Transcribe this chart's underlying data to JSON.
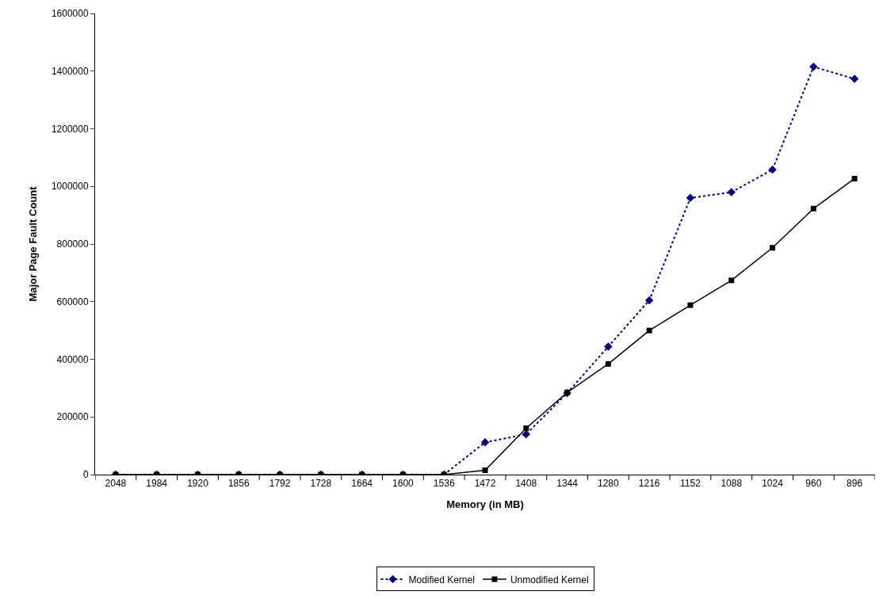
{
  "chart_data": {
    "type": "line",
    "xlabel": "Memory (in MB)",
    "ylabel": "Major Page Fault Count",
    "categories": [
      "2048",
      "1984",
      "1920",
      "1856",
      "1792",
      "1728",
      "1664",
      "1600",
      "1536",
      "1472",
      "1408",
      "1344",
      "1280",
      "1216",
      "1152",
      "1088",
      "1024",
      "960",
      "896"
    ],
    "series": [
      {
        "name": "Modified Kernel",
        "color": "#000080",
        "marker": "diamond",
        "line_style": "dotted",
        "values": [
          0,
          0,
          0,
          0,
          0,
          0,
          0,
          0,
          0,
          112000,
          140000,
          283000,
          444000,
          605000,
          960000,
          980000,
          1058000,
          1415000,
          1373000
        ]
      },
      {
        "name": "Unmodified Kernel",
        "color": "#000000",
        "marker": "square",
        "line_style": "solid",
        "values": [
          0,
          0,
          0,
          0,
          0,
          0,
          0,
          0,
          0,
          15000,
          161000,
          285000,
          384000,
          500000,
          588000,
          674000,
          787000,
          923000,
          1027000
        ]
      }
    ],
    "ylim": [
      0,
      1600000
    ],
    "yticks": [
      0,
      200000,
      400000,
      600000,
      800000,
      1000000,
      1200000,
      1400000,
      1600000
    ],
    "legend": "bottom"
  }
}
